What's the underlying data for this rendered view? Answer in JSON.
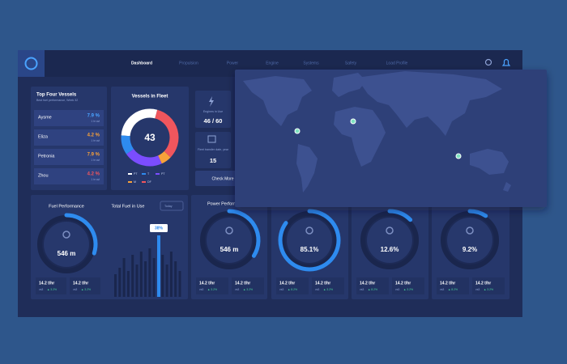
{
  "nav": [
    "Dashboard",
    "Propulsion",
    "Power",
    "Engine",
    "Systems",
    "Safety",
    "Load Profile"
  ],
  "top_vessels": {
    "title": "Top Four Vessels",
    "subtitle": "Best fuel performance, Week 32",
    "rows": [
      {
        "name": "Aysme",
        "value": "7.9 %",
        "note": "1 hr avl",
        "color": "#4aa3ff"
      },
      {
        "name": "Eliza",
        "value": "4.2 %",
        "note": "1 hr avl",
        "color": "#f7a13a"
      },
      {
        "name": "Petronia",
        "value": "7.9 %",
        "note": "1 hr avl",
        "color": "#f7a13a"
      },
      {
        "name": "Zhou",
        "value": "4.2 %",
        "note": "1 hr avl",
        "color": "#f0565d"
      }
    ]
  },
  "fleet": {
    "title": "Vessels in Fleet",
    "total": 43,
    "segments": [
      {
        "name": "PT",
        "color": "#ffffff",
        "value": 28
      },
      {
        "name": "T",
        "color": "#2e8bef",
        "value": 11
      },
      {
        "name": "PT",
        "color": "#7b4dff",
        "value": 22
      },
      {
        "name": "M",
        "color": "#f7a13a",
        "value": 6
      },
      {
        "name": "DF",
        "color": "#f0565d",
        "value": 33
      }
    ]
  },
  "tiles": {
    "engines": {
      "label": "Engines in Use",
      "value": "46 / 60"
    },
    "transfer": {
      "label": "Fleet transfer date, year",
      "value": "15"
    },
    "button": "Check More"
  },
  "fuel": {
    "title": "Fuel Performance",
    "gauge": {
      "label": "546 m",
      "arc_percent": 30
    },
    "stats": [
      {
        "value": "14.2 t/hr",
        "ref": "vs3",
        "change": "▲ 3.2%"
      },
      {
        "value": "14.2 t/hr",
        "ref": "vs3",
        "change": "▲ 3.2%"
      }
    ]
  },
  "total_fuel": {
    "title": "Total Fuel in Use",
    "filter": "Today",
    "values": [
      14,
      18,
      24,
      16,
      26,
      20,
      28,
      22,
      30,
      24,
      38,
      26,
      20,
      28,
      22,
      16
    ],
    "value_labels": [
      null,
      null,
      null,
      null,
      null,
      null,
      null,
      null,
      null,
      null,
      "38%",
      null,
      null,
      null,
      null,
      null
    ]
  },
  "power": {
    "title": "Power Performance",
    "gauge": {
      "label": "546 m",
      "arc_percent": 34
    },
    "stats": [
      {
        "value": "14.2 t/hr",
        "ref": "vs3",
        "change": "▲ 3.2%"
      },
      {
        "value": "14.2 t/hr",
        "ref": "vs3",
        "change": "▲ 3.2%"
      }
    ]
  },
  "gauges": [
    {
      "label": "85.1%",
      "value": 85.1,
      "stats": [
        {
          "value": "14.2 t/hr",
          "ref": "vs3",
          "change": "▲ 8.2%"
        },
        {
          "value": "14.2 t/hr",
          "ref": "vs3",
          "change": "▲ 3.2%"
        }
      ]
    },
    {
      "label": "12.6%",
      "value": 12.6,
      "stats": [
        {
          "value": "14.2 t/hr",
          "ref": "vs3",
          "change": "▲ 8.2%"
        },
        {
          "value": "14.2 t/hr",
          "ref": "vs3",
          "change": "▲ 3.2%"
        }
      ]
    },
    {
      "label": "9.2%",
      "value": 9.2,
      "stats": [
        {
          "value": "14.2 t/hr",
          "ref": "vs3",
          "change": "▲ 8.2%"
        },
        {
          "value": "14.2 t/hr",
          "ref": "vs3",
          "change": "▲ 3.2%"
        }
      ]
    }
  ]
}
